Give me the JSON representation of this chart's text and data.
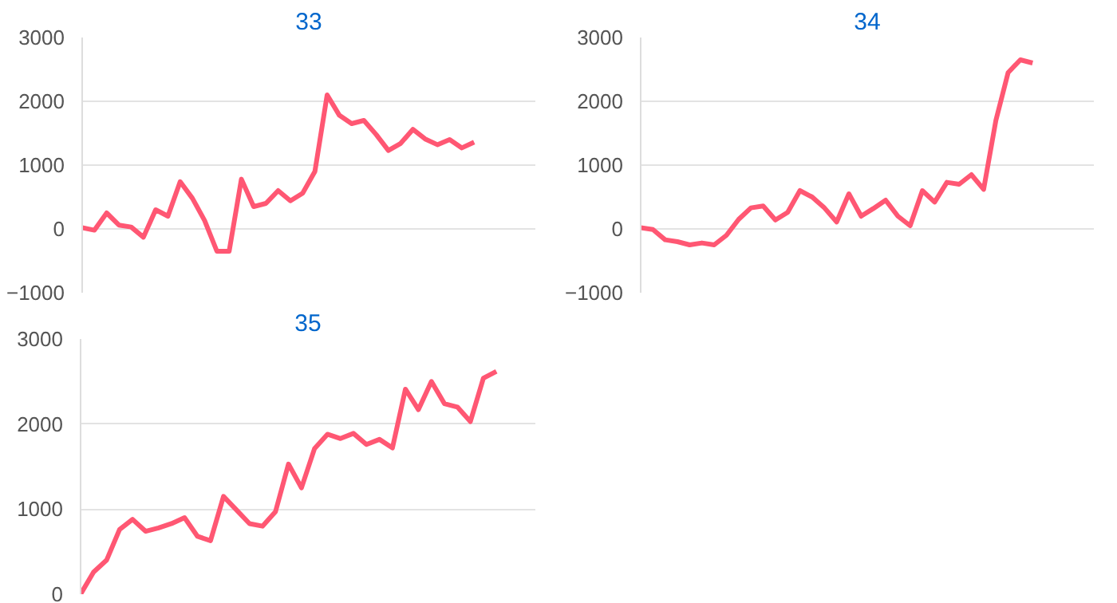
{
  "chart_data": [
    {
      "type": "line",
      "title": "33",
      "categories": [
        null,
        null,
        null,
        null,
        null,
        null,
        null,
        null,
        null,
        null,
        null,
        null,
        null,
        null,
        null,
        null,
        null,
        null,
        null,
        null,
        null,
        null,
        null,
        null,
        null,
        null,
        null,
        null,
        null,
        null,
        null,
        null,
        null,
        null,
        null,
        null,
        null,
        null
      ],
      "series": [
        {
          "color": "#ff5773",
          "values": [
            20,
            -20,
            250,
            60,
            30,
            -130,
            300,
            200,
            740,
            480,
            130,
            -350,
            -350,
            780,
            350,
            400,
            600,
            440,
            560,
            900,
            2100,
            1780,
            1650,
            1700,
            1480,
            1230,
            1340,
            1560,
            1410,
            1320,
            1400,
            1270,
            1360,
            null,
            null,
            null,
            null,
            null
          ]
        }
      ],
      "ylim": [
        -1000,
        3000
      ],
      "yticks": [
        -1000,
        0,
        1000,
        2000,
        3000
      ],
      "grid": "y",
      "tick_labels": "y"
    },
    {
      "type": "line",
      "title": "34",
      "categories": [
        null,
        null,
        null,
        null,
        null,
        null,
        null,
        null,
        null,
        null,
        null,
        null,
        null,
        null,
        null,
        null,
        null,
        null,
        null,
        null,
        null,
        null,
        null,
        null,
        null,
        null,
        null,
        null,
        null,
        null,
        null,
        null,
        null,
        null,
        null,
        null,
        null,
        null
      ],
      "series": [
        {
          "color": "#ff5773",
          "values": [
            20,
            -10,
            -170,
            -200,
            -250,
            -220,
            -250,
            -100,
            150,
            330,
            360,
            140,
            260,
            600,
            500,
            330,
            110,
            550,
            200,
            320,
            450,
            200,
            50,
            600,
            420,
            730,
            700,
            850,
            620,
            1700,
            2450,
            2650,
            2600,
            null,
            null,
            null,
            null,
            null
          ]
        }
      ],
      "ylim": [
        -1000,
        3000
      ],
      "yticks": [
        -1000,
        0,
        1000,
        2000,
        3000
      ],
      "grid": "y",
      "tick_labels": "y"
    },
    {
      "type": "line",
      "title": "35",
      "categories": [
        null,
        null,
        null,
        null,
        null,
        null,
        null,
        null,
        null,
        null,
        null,
        null,
        null,
        null,
        null,
        null,
        null,
        null,
        null,
        null,
        null,
        null,
        null,
        null,
        null,
        null,
        null,
        null,
        null,
        null,
        null,
        null,
        null,
        null,
        null,
        null
      ],
      "series": [
        {
          "color": "#ff5773",
          "values": [
            0,
            260,
            400,
            760,
            880,
            740,
            780,
            830,
            900,
            680,
            630,
            1150,
            990,
            830,
            800,
            970,
            1530,
            1250,
            1710,
            1880,
            1830,
            1890,
            1760,
            1820,
            1720,
            2410,
            2170,
            2500,
            2240,
            2200,
            2030,
            2540,
            2620,
            null,
            null,
            null
          ]
        }
      ],
      "ylim": [
        0,
        3000
      ],
      "yticks": [
        0,
        1000,
        2000,
        3000
      ],
      "grid": "y",
      "tick_labels": "y"
    }
  ]
}
